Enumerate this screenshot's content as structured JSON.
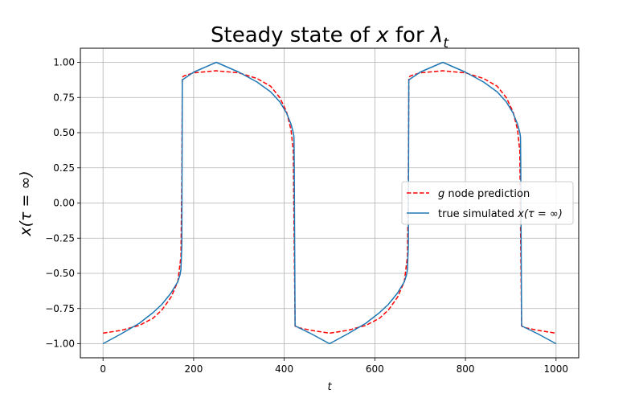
{
  "chart_data": {
    "type": "line",
    "title_main": "Steady state of ",
    "title_var": "x",
    "title_mid": " for ",
    "title_sym": "λ",
    "title_sub": "t",
    "xlabel": "t",
    "ylabel": "x(τ = ∞)",
    "xlim": [
      -50,
      1050
    ],
    "ylim": [
      -1.1,
      1.1
    ],
    "xticks": [
      0,
      200,
      400,
      600,
      800,
      1000
    ],
    "yticks": [
      -1.0,
      -0.75,
      -0.5,
      -0.25,
      0.0,
      0.25,
      0.5,
      0.75,
      1.0
    ],
    "xtick_labels": [
      "0",
      "200",
      "400",
      "600",
      "800",
      "1000"
    ],
    "ytick_labels": [
      "−1.00",
      "−0.75",
      "−0.50",
      "−0.25",
      "0.00",
      "0.25",
      "0.50",
      "0.75",
      "1.00"
    ],
    "grid": true,
    "legend_position": "center-right",
    "series": [
      {
        "name": "g node prediction",
        "name_var": "g",
        "name_rest": " node prediction",
        "color": "#ff0000",
        "style": "dashed",
        "x": [
          0,
          40,
          80,
          110,
          130,
          150,
          165,
          172,
          174,
          175,
          180,
          200,
          250,
          300,
          340,
          370,
          390,
          405,
          415,
          420,
          422,
          424,
          430,
          460,
          500,
          540,
          580,
          610,
          630,
          650,
          665,
          672,
          674,
          675,
          680,
          700,
          750,
          800,
          840,
          870,
          890,
          905,
          915,
          920,
          922,
          924,
          930,
          960,
          1000
        ],
        "y": [
          -0.925,
          -0.905,
          -0.87,
          -0.82,
          -0.76,
          -0.67,
          -0.56,
          -0.38,
          0.2,
          0.895,
          0.905,
          0.925,
          0.94,
          0.925,
          0.885,
          0.83,
          0.75,
          0.65,
          0.52,
          0.37,
          -0.3,
          -0.875,
          -0.885,
          -0.905,
          -0.925,
          -0.905,
          -0.87,
          -0.82,
          -0.76,
          -0.67,
          -0.56,
          -0.38,
          0.2,
          0.895,
          0.905,
          0.925,
          0.94,
          0.925,
          0.885,
          0.83,
          0.75,
          0.65,
          0.52,
          0.37,
          -0.3,
          -0.875,
          -0.885,
          -0.905,
          -0.925
        ]
      },
      {
        "name": "true simulated x(τ = ∞)",
        "name_pre": "true simulated ",
        "name_math": "x(τ = ∞)",
        "color": "#1f77b4",
        "style": "solid",
        "x": [
          0,
          40,
          80,
          110,
          130,
          150,
          165,
          170,
          172,
          174,
          174.5,
          175,
          200,
          250,
          300,
          340,
          370,
          390,
          405,
          415,
          420,
          421.5,
          422,
          423,
          424,
          425,
          460,
          500,
          540,
          580,
          610,
          630,
          650,
          665,
          670,
          672,
          674,
          674.5,
          675,
          700,
          750,
          800,
          840,
          870,
          890,
          905,
          915,
          920,
          921.5,
          922,
          923,
          924,
          925,
          960,
          1000
        ],
        "y": [
          -1.0,
          -0.93,
          -0.855,
          -0.78,
          -0.72,
          -0.64,
          -0.56,
          -0.51,
          -0.47,
          -0.3,
          0.3,
          0.875,
          0.93,
          1.0,
          0.93,
          0.86,
          0.79,
          0.72,
          0.64,
          0.56,
          0.5,
          0.47,
          0.3,
          -0.3,
          -0.87,
          -0.875,
          -0.93,
          -1.0,
          -0.93,
          -0.855,
          -0.78,
          -0.72,
          -0.64,
          -0.56,
          -0.51,
          -0.47,
          -0.3,
          0.3,
          0.875,
          0.93,
          1.0,
          0.93,
          0.86,
          0.79,
          0.72,
          0.64,
          0.56,
          0.5,
          0.47,
          0.3,
          -0.3,
          -0.87,
          -0.875,
          -0.93,
          -1.0
        ]
      }
    ]
  }
}
